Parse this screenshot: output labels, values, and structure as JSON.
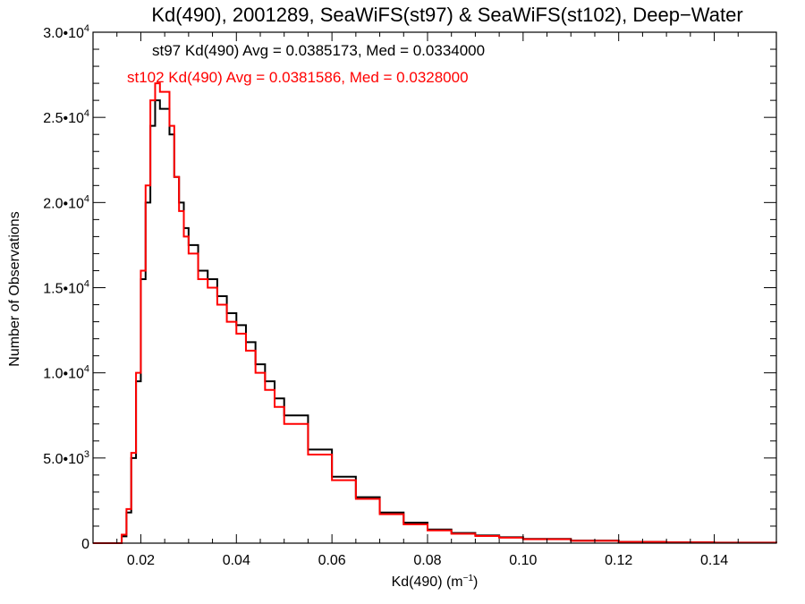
{
  "chart_data": {
    "type": "line",
    "title": "Kd(490), 2001289, SeaWiFS(st97) & SeaWiFS(st102), Deep−Water",
    "xlabel": "Kd(490) (m⁻¹)",
    "ylabel": "Number of Observations",
    "xlim": [
      0.01,
      0.153
    ],
    "ylim": [
      0,
      30000
    ],
    "x_ticks": [
      0.02,
      0.04,
      0.06,
      0.08,
      0.1,
      0.12,
      0.14
    ],
    "x_tick_labels": [
      "0.02",
      "0.04",
      "0.06",
      "0.08",
      "0.10",
      "0.12",
      "0.14"
    ],
    "y_ticks": [
      0,
      5000,
      10000,
      15000,
      20000,
      25000,
      30000
    ],
    "y_tick_labels": [
      {
        "mant": "0",
        "exp": ""
      },
      {
        "mant": "5.0•1",
        "exp": "3"
      },
      {
        "mant": "1.0•1",
        "exp": "4"
      },
      {
        "mant": "1.5•1",
        "exp": "4"
      },
      {
        "mant": "2.0•1",
        "exp": "4"
      },
      {
        "mant": "2.5•1",
        "exp": "4"
      },
      {
        "mant": "3.0•1",
        "exp": "4"
      }
    ],
    "grid": false,
    "annotations": [
      {
        "text": "st97 Kd(490) Avg = 0.0385173, Med = 0.0334000",
        "color": "#000000"
      },
      {
        "text": "st102 Kd(490) Avg = 0.0381586, Med = 0.0328000",
        "color": "#ff0000"
      }
    ],
    "series": [
      {
        "color": "#000000",
        "x": [
          0.01,
          0.015,
          0.016,
          0.017,
          0.018,
          0.019,
          0.02,
          0.021,
          0.022,
          0.023,
          0.024,
          0.025,
          0.026,
          0.027,
          0.028,
          0.029,
          0.03,
          0.032,
          0.034,
          0.036,
          0.038,
          0.04,
          0.042,
          0.044,
          0.046,
          0.048,
          0.05,
          0.055,
          0.06,
          0.065,
          0.07,
          0.075,
          0.08,
          0.085,
          0.09,
          0.095,
          0.1,
          0.11,
          0.12,
          0.13,
          0.14,
          0.153
        ],
        "y": [
          0,
          0,
          400,
          1800,
          5000,
          9500,
          15500,
          20000,
          24500,
          26000,
          25500,
          25500,
          24000,
          21500,
          20000,
          18500,
          17500,
          16000,
          15500,
          14500,
          13500,
          12800,
          11800,
          10500,
          9500,
          8500,
          7500,
          5500,
          3900,
          2700,
          1800,
          1200,
          800,
          600,
          450,
          350,
          250,
          150,
          80,
          50,
          30,
          20
        ]
      },
      {
        "color": "#ff0000",
        "x": [
          0.01,
          0.015,
          0.016,
          0.017,
          0.018,
          0.019,
          0.02,
          0.021,
          0.022,
          0.023,
          0.024,
          0.025,
          0.026,
          0.027,
          0.028,
          0.029,
          0.03,
          0.032,
          0.034,
          0.036,
          0.038,
          0.04,
          0.042,
          0.044,
          0.046,
          0.048,
          0.05,
          0.055,
          0.06,
          0.065,
          0.07,
          0.075,
          0.08,
          0.085,
          0.09,
          0.095,
          0.1,
          0.11,
          0.12,
          0.13,
          0.14,
          0.153
        ],
        "y": [
          0,
          0,
          500,
          2000,
          5300,
          10000,
          16000,
          21000,
          26000,
          27000,
          26500,
          26500,
          24500,
          21500,
          19500,
          18000,
          17000,
          15500,
          15000,
          14000,
          13000,
          12300,
          11300,
          10000,
          9000,
          8000,
          7000,
          5200,
          3700,
          2600,
          1700,
          1100,
          750,
          550,
          420,
          320,
          230,
          140,
          75,
          45,
          25,
          15
        ]
      }
    ]
  }
}
